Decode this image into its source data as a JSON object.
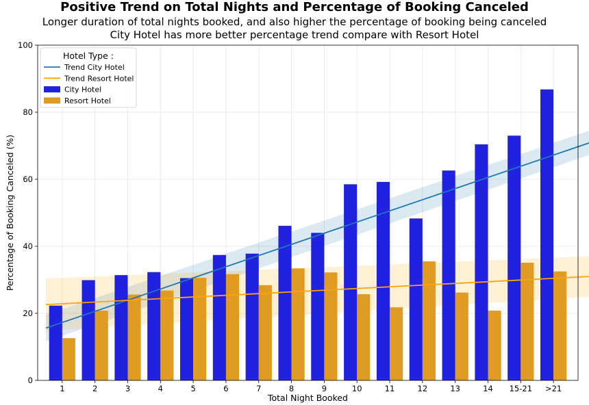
{
  "title": "Positive Trend on Total Nights and Percentage of Booking Canceled",
  "subtitle_lines": [
    "Longer duration of total nights booked, and also higher the percentage of booking being canceled",
    "City Hotel has more better percentage trend compare with Resort Hotel"
  ],
  "chart_data": {
    "type": "bar",
    "xlabel": "Total Night Booked",
    "ylabel": "Percentage of Booking Canceled (%)",
    "ylim": [
      0,
      100
    ],
    "yticks": [
      0,
      20,
      40,
      60,
      80,
      100
    ],
    "grid": true,
    "categories": [
      "1",
      "2",
      "3",
      "4",
      "5",
      "6",
      "7",
      "8",
      "9",
      "10",
      "11",
      "12",
      "13",
      "14",
      "15-21",
      ">21"
    ],
    "series": [
      {
        "name": "City Hotel",
        "color": "#2121e0",
        "values": [
          22.3,
          29.9,
          31.4,
          32.3,
          30.5,
          37.4,
          37.8,
          46.1,
          44.0,
          58.5,
          59.2,
          48.3,
          62.6,
          70.4,
          73.0,
          86.8
        ]
      },
      {
        "name": "Resort Hotel",
        "color": "#e09b22",
        "values": [
          12.6,
          20.8,
          25.6,
          26.8,
          30.6,
          31.7,
          28.4,
          33.4,
          32.2,
          25.7,
          21.8,
          35.5,
          26.2,
          20.8,
          35.1,
          32.5
        ]
      }
    ],
    "trends": [
      {
        "name": "Trend City Hotel",
        "color": "#1f77b4",
        "start": [
          0.5,
          15.6
        ],
        "end": [
          17.5,
          72.2
        ],
        "band_start_halfwidth": 4.0,
        "band_end_halfwidth": 3.6
      },
      {
        "name": "Trend Resort Hotel",
        "color": "#ffa500",
        "start": [
          0.5,
          22.6
        ],
        "end": [
          17.5,
          31.2
        ],
        "band_start_halfwidth": 7.8,
        "band_end_halfwidth": 6.0
      }
    ],
    "legend": {
      "title": "Hotel Type :",
      "placement": "top-left",
      "entries": [
        "Trend City Hotel",
        "Trend Resort Hotel",
        "City Hotel",
        "Resort Hotel"
      ]
    }
  }
}
